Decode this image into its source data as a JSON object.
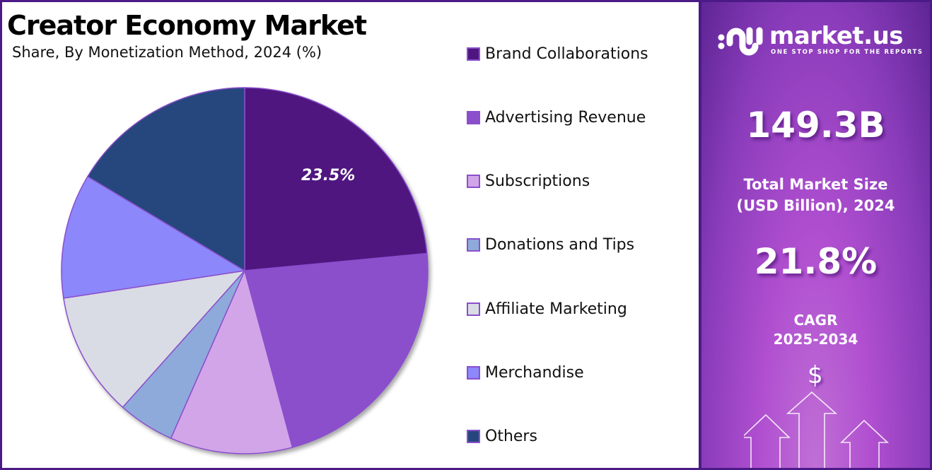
{
  "header": {
    "title": "Creator Economy Market",
    "subtitle": "Share, By Monetization Method, 2024 (%)"
  },
  "legend": {
    "items": [
      {
        "label": "Brand Collaborations",
        "color": "#4f1680"
      },
      {
        "label": "Advertising Revenue",
        "color": "#8b4fcc"
      },
      {
        "label": "Subscriptions",
        "color": "#d2a5e9"
      },
      {
        "label": "Donations and Tips",
        "color": "#8eaadb"
      },
      {
        "label": "Affiliate Marketing",
        "color": "#d9dce4"
      },
      {
        "label": "Merchandise",
        "color": "#8c87fb"
      },
      {
        "label": "Others",
        "color": "#27467d"
      }
    ]
  },
  "pie": {
    "highlight_label": "23.5%",
    "slice_border_color": "#8a4fcc"
  },
  "sidebar": {
    "brand": {
      "name": "market.us",
      "tagline": "ONE STOP SHOP FOR THE REPORTS"
    },
    "market_size": {
      "value": "149.3B",
      "caption_line1": "Total Market Size",
      "caption_line2": "(USD Billion), 2024"
    },
    "cagr": {
      "value": "21.8%",
      "caption_line1": "CAGR",
      "caption_line2": "2025-2034"
    },
    "dollar_symbol": "$"
  },
  "chart_data": {
    "type": "pie",
    "title": "Creator Economy Market",
    "subtitle": "Share, By Monetization Method, 2024 (%)",
    "categories": [
      "Brand Collaborations",
      "Advertising Revenue",
      "Subscriptions",
      "Donations and Tips",
      "Affiliate Marketing",
      "Merchandise",
      "Others"
    ],
    "values": [
      23.5,
      22.3,
      10.8,
      5.0,
      11.0,
      11.0,
      16.4
    ],
    "colors": [
      "#4f1680",
      "#8b4fcc",
      "#d2a5e9",
      "#8eaadb",
      "#d9dce4",
      "#8c87fb",
      "#27467d"
    ],
    "data_labels": {
      "Brand Collaborations": "23.5%"
    },
    "start_angle_deg": 0,
    "direction": "clockwise",
    "legend_position": "right",
    "annotations": {
      "market_size_2024": "149.3B",
      "market_size_unit": "USD Billion",
      "cagr": "21.8%",
      "cagr_period": "2025-2034"
    }
  }
}
